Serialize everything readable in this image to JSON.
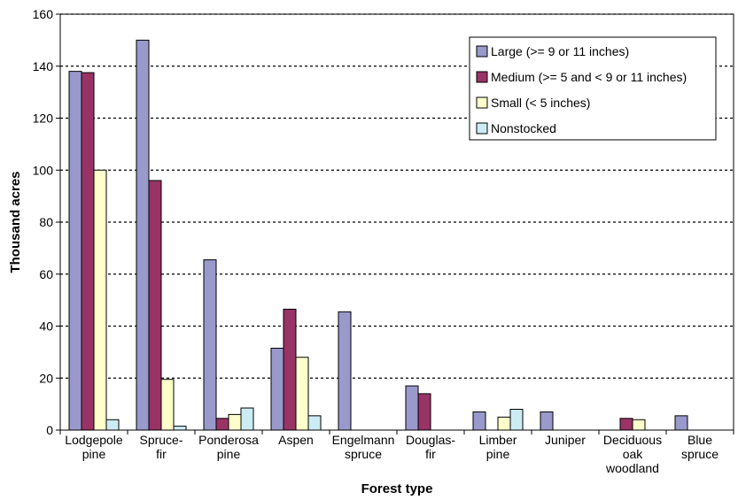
{
  "chart_data": {
    "type": "bar",
    "xlabel": "Forest type",
    "ylabel": "Thousand acres",
    "ylim": [
      0,
      160
    ],
    "yticks": [
      0,
      20,
      40,
      60,
      80,
      100,
      120,
      140,
      160
    ],
    "grid": "horizontal dashed",
    "legend_position": "top-right",
    "categories": [
      [
        "Lodgepole",
        "pine"
      ],
      [
        "Spruce-",
        "fir"
      ],
      [
        "Ponderosa",
        "pine"
      ],
      [
        "Aspen"
      ],
      [
        "Engelmann",
        "spruce"
      ],
      [
        "Douglas-",
        "fir"
      ],
      [
        "Limber",
        "pine"
      ],
      [
        "Juniper"
      ],
      [
        "Deciduous",
        "oak",
        "woodland"
      ],
      [
        "Blue",
        "spruce"
      ]
    ],
    "series": [
      {
        "name": "Large (>= 9 or 11 inches)",
        "color": "#9999cc",
        "values": [
          138,
          150,
          65.5,
          31.5,
          45.5,
          17,
          7,
          7,
          0,
          5.5
        ]
      },
      {
        "name": "Medium (>= 5 and < 9 or 11 inches)",
        "color": "#993366",
        "values": [
          137.5,
          96,
          4.5,
          46.5,
          0,
          14,
          0,
          0,
          4.5,
          0
        ]
      },
      {
        "name": "Small (< 5 inches)",
        "color": "#ffffcc",
        "values": [
          100,
          19.5,
          6,
          28,
          0,
          0,
          5,
          0,
          4,
          0
        ]
      },
      {
        "name": "Nonstocked",
        "color": "#ccecf4",
        "values": [
          4,
          1.5,
          8.5,
          5.5,
          0,
          0,
          8,
          0,
          0,
          0
        ]
      }
    ]
  }
}
